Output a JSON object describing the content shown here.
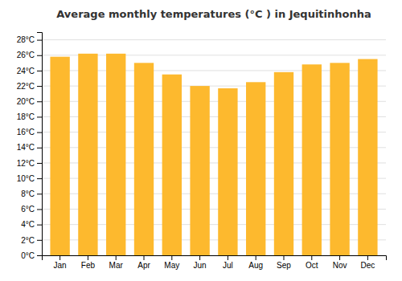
{
  "chart_data": {
    "type": "bar",
    "title": "Average monthly temperatures (°C ) in Jequitinhonha",
    "categories": [
      "Jan",
      "Feb",
      "Mar",
      "Apr",
      "May",
      "Jun",
      "Jul",
      "Aug",
      "Sep",
      "Oct",
      "Nov",
      "Dec"
    ],
    "values": [
      25.8,
      26.2,
      26.2,
      25.0,
      23.5,
      22.0,
      21.7,
      22.5,
      23.8,
      24.8,
      25.0,
      25.5
    ],
    "color": "#FDB92E",
    "ylim": [
      0,
      29
    ],
    "yticks": [
      {
        "value": 0,
        "label": "0°C"
      },
      {
        "value": 2,
        "label": "2°C"
      },
      {
        "value": 4,
        "label": "4°C"
      },
      {
        "value": 6,
        "label": "6°C"
      },
      {
        "value": 8,
        "label": "8°C"
      },
      {
        "value": 10,
        "label": "10°C"
      },
      {
        "value": 12,
        "label": "12°C"
      },
      {
        "value": 14,
        "label": "14°C"
      },
      {
        "value": 16,
        "label": "16°C"
      },
      {
        "value": 18,
        "label": "18°C"
      },
      {
        "value": 20,
        "label": "20°C"
      },
      {
        "value": 22,
        "label": "22°C"
      },
      {
        "value": 24,
        "label": "24°C"
      },
      {
        "value": 26,
        "label": "26°C"
      },
      {
        "value": 28,
        "label": "28°C"
      }
    ],
    "grid": true
  }
}
